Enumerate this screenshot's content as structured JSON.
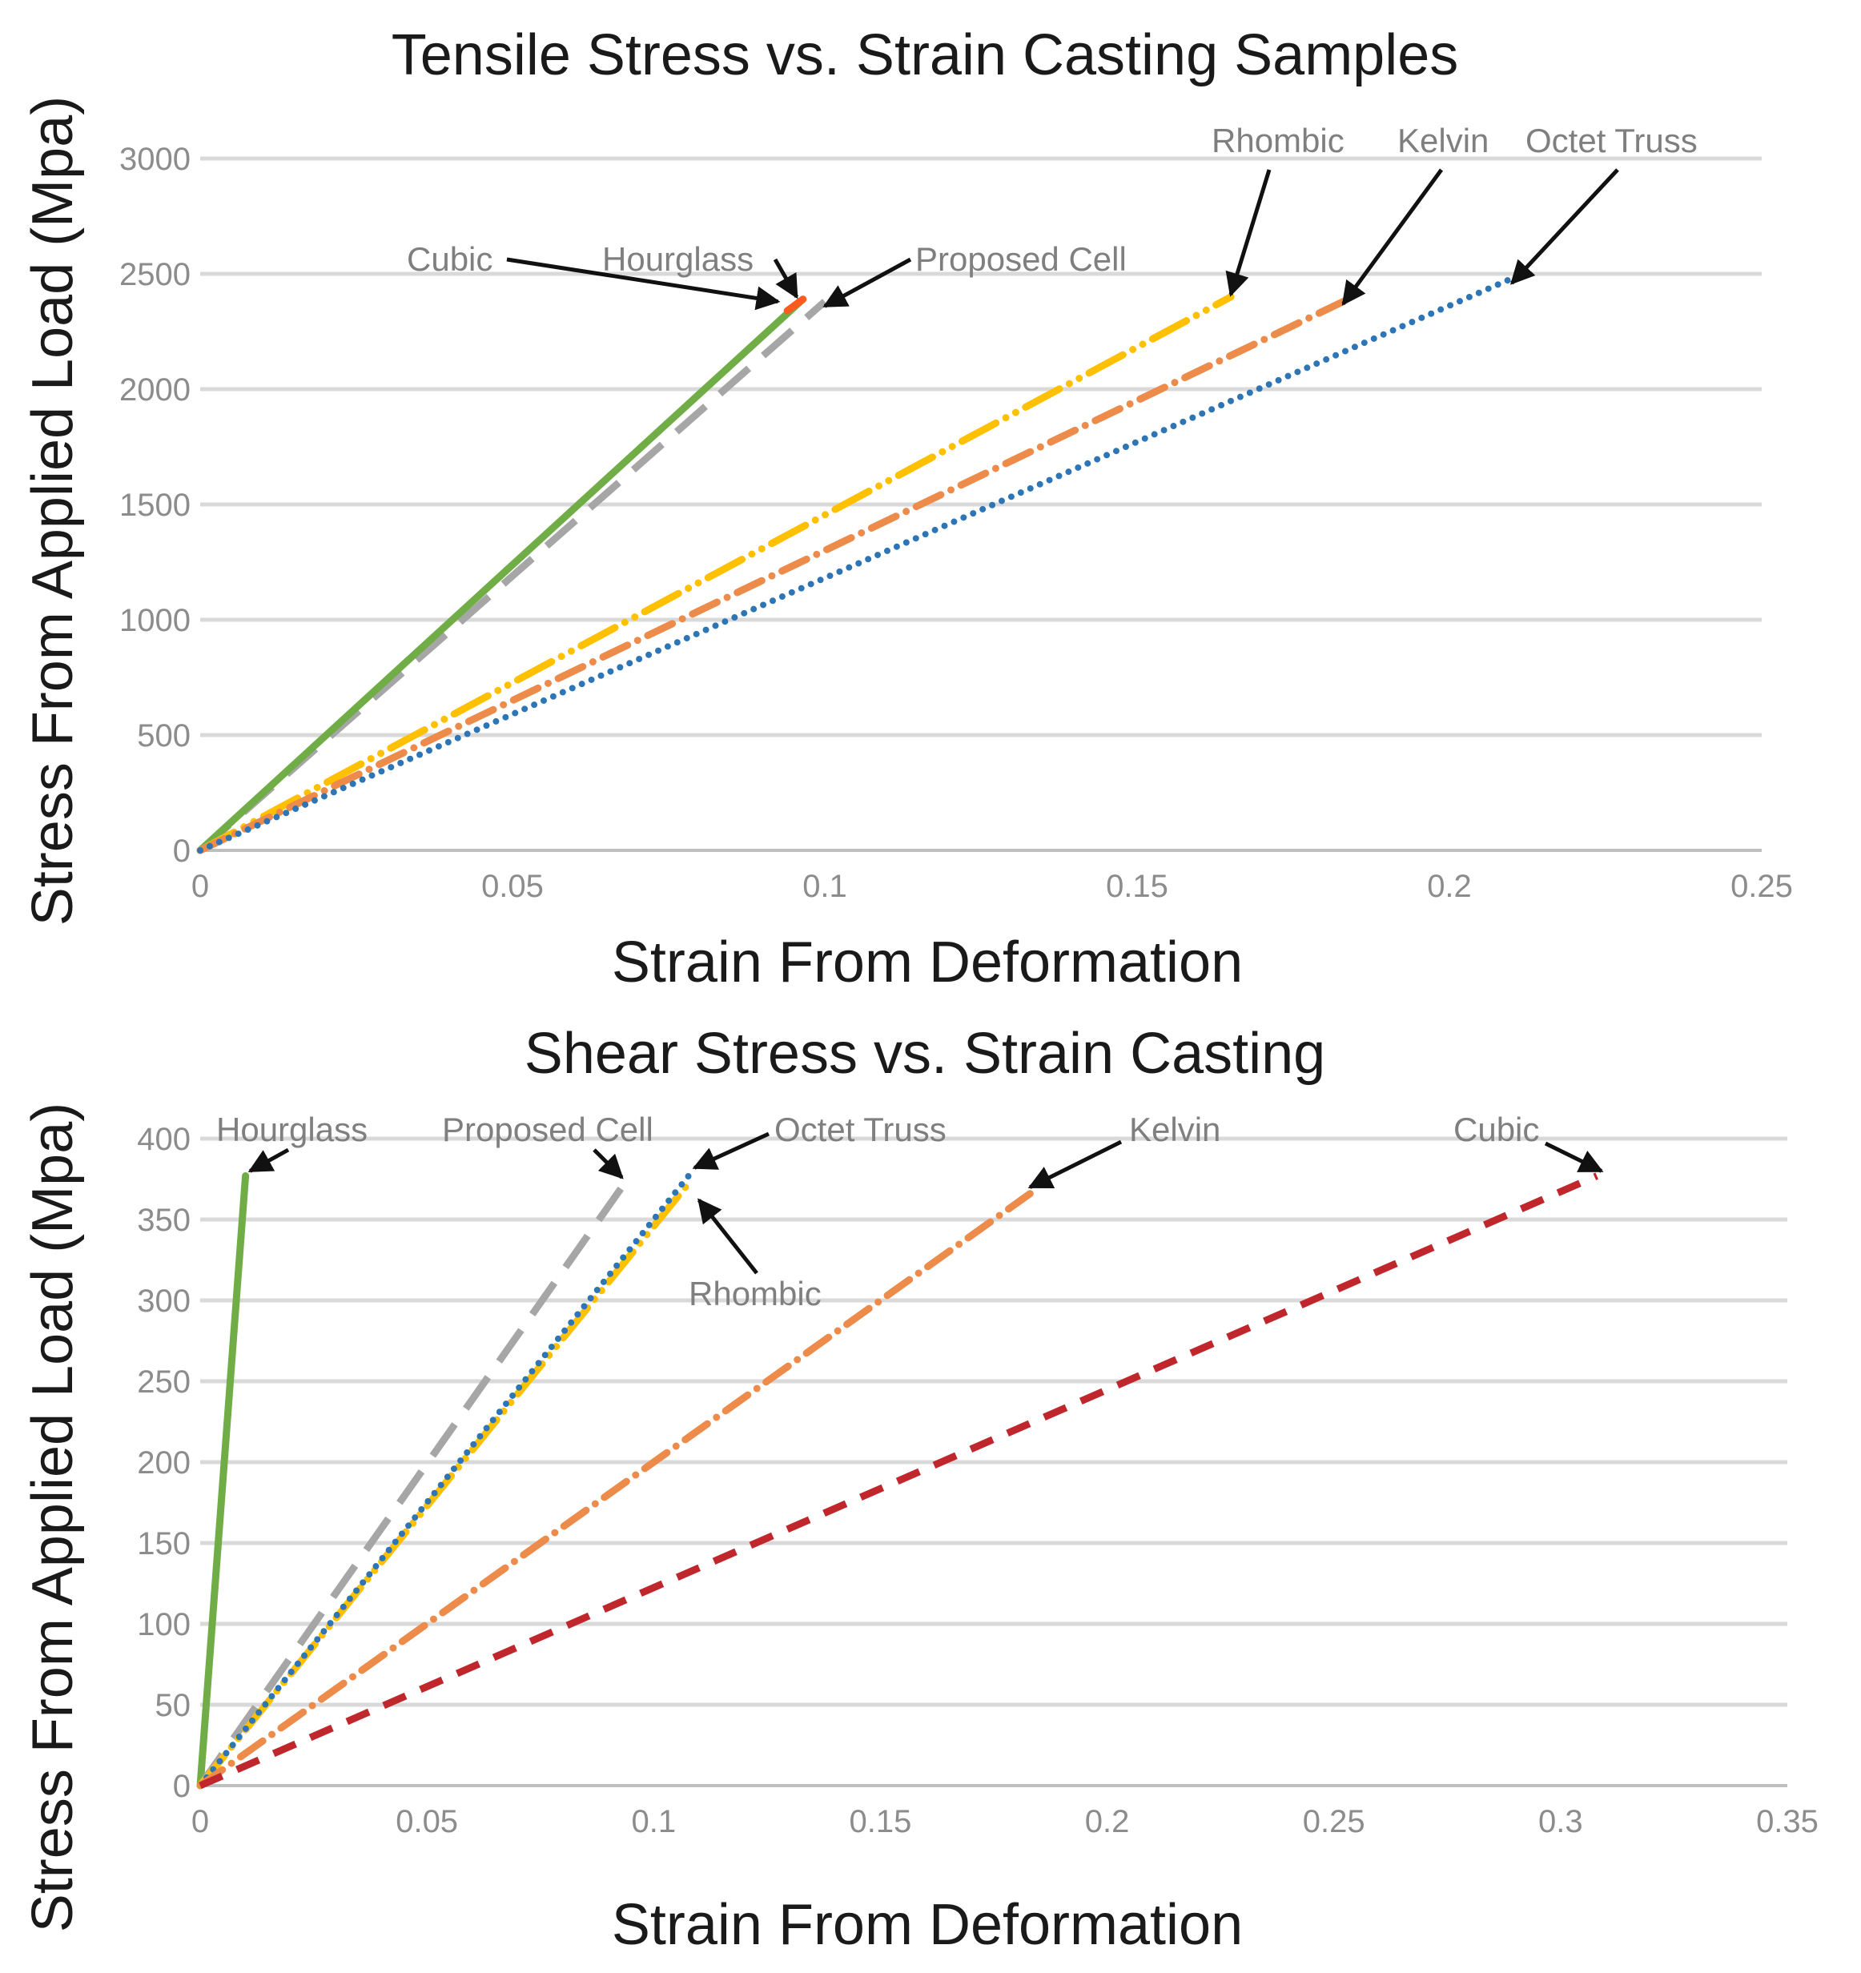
{
  "chart_data": [
    {
      "type": "line",
      "title": "Tensile Stress vs. Strain Casting Samples",
      "xlabel": "Strain From Deformation",
      "ylabel": "Stress From Applied Load (Mpa)",
      "xlim": [
        0,
        0.25
      ],
      "ylim": [
        0,
        3000
      ],
      "xticks": [
        0,
        0.05,
        0.1,
        0.15,
        0.2,
        0.25
      ],
      "xtick_labels": [
        "0",
        "0.05",
        "0.1",
        "0.15",
        "0.2",
        "0.25"
      ],
      "yticks": [
        0,
        500,
        1000,
        1500,
        2000,
        2500,
        3000
      ],
      "ytick_labels": [
        "0",
        "500",
        "1000",
        "1500",
        "2000",
        "2500",
        "3000"
      ],
      "grid": true,
      "series": [
        {
          "name": "Proposed Cell",
          "color": "#a6a6a6",
          "dash": "long-dash",
          "x": [
            0,
            0.1
          ],
          "y": [
            0,
            2380
          ]
        },
        {
          "name": "Cubic",
          "color": "#70ad47",
          "dash": "solid",
          "x": [
            0,
            0.0965
          ],
          "y": [
            0,
            2390
          ]
        },
        {
          "name": "Hourglass",
          "color": "#ff5a1f",
          "dash": "solid",
          "x": [
            0.094,
            0.0965
          ],
          "y": [
            2340,
            2390
          ]
        },
        {
          "name": "Rhombic",
          "color": "#ffc000",
          "dash": "dash-dot-dot",
          "x": [
            0,
            0.165
          ],
          "y": [
            0,
            2400
          ]
        },
        {
          "name": "Kelvin",
          "color": "#ed8b4b",
          "dash": "dash-dot",
          "x": [
            0,
            0.183
          ],
          "y": [
            0,
            2380
          ]
        },
        {
          "name": "Octet Truss",
          "color": "#2e75b6",
          "dash": "dotted",
          "x": [
            0,
            0.21
          ],
          "y": [
            0,
            2480
          ]
        }
      ],
      "annotations": [
        {
          "text": "Cubic",
          "target": [
            0.0925,
            2380
          ]
        },
        {
          "text": "Hourglass",
          "target": [
            0.0955,
            2400
          ]
        },
        {
          "text": "Proposed Cell",
          "target": [
            0.1,
            2360
          ]
        },
        {
          "text": "Rhombic",
          "target": [
            0.165,
            2410
          ]
        },
        {
          "text": "Kelvin",
          "target": [
            0.183,
            2370
          ]
        },
        {
          "text": "Octet Truss",
          "target": [
            0.21,
            2460
          ]
        }
      ]
    },
    {
      "type": "line",
      "title": "Shear Stress vs. Strain Casting",
      "xlabel": "Strain From Deformation",
      "ylabel": "Stress From Applied Load (Mpa)",
      "xlim": [
        0,
        0.35
      ],
      "ylim": [
        0,
        400
      ],
      "xticks": [
        0,
        0.05,
        0.1,
        0.15,
        0.2,
        0.25,
        0.3,
        0.35
      ],
      "xtick_labels": [
        "0",
        "0.05",
        "0.1",
        "0.15",
        "0.2",
        "0.25",
        "0.3",
        "0.35"
      ],
      "yticks": [
        0,
        50,
        100,
        150,
        200,
        250,
        300,
        350,
        400
      ],
      "ytick_labels": [
        "0",
        "50",
        "100",
        "150",
        "200",
        "250",
        "300",
        "350",
        "400"
      ],
      "grid": true,
      "series": [
        {
          "name": "Hourglass",
          "color": "#70ad47",
          "dash": "solid",
          "x": [
            0,
            0.01
          ],
          "y": [
            0,
            377
          ]
        },
        {
          "name": "Proposed Cell",
          "color": "#a6a6a6",
          "dash": "long-dash",
          "x": [
            0,
            0.093
          ],
          "y": [
            0,
            370
          ]
        },
        {
          "name": "Rhombic",
          "color": "#ffc000",
          "dash": "dash-dot-dot",
          "x": [
            0,
            0.107
          ],
          "y": [
            0,
            370
          ]
        },
        {
          "name": "Octet Truss",
          "color": "#2e75b6",
          "dash": "dotted",
          "x": [
            0,
            0.108
          ],
          "y": [
            0,
            378
          ]
        },
        {
          "name": "Kelvin",
          "color": "#ed8b4b",
          "dash": "dash-dot",
          "x": [
            0,
            0.183
          ],
          "y": [
            0,
            366
          ]
        },
        {
          "name": "Cubic",
          "color": "#c0272d",
          "dash": "dashed",
          "x": [
            0,
            0.308
          ],
          "y": [
            0,
            377
          ]
        }
      ],
      "annotations": [
        {
          "text": "Hourglass",
          "target": [
            0.011,
            380
          ]
        },
        {
          "text": "Proposed Cell",
          "target": [
            0.093,
            376
          ]
        },
        {
          "text": "Octet Truss",
          "target": [
            0.109,
            382
          ]
        },
        {
          "text": "Rhombic",
          "target": [
            0.11,
            362
          ]
        },
        {
          "text": "Kelvin",
          "target": [
            0.183,
            370
          ]
        },
        {
          "text": "Cubic",
          "target": [
            0.309,
            380
          ]
        }
      ]
    }
  ]
}
